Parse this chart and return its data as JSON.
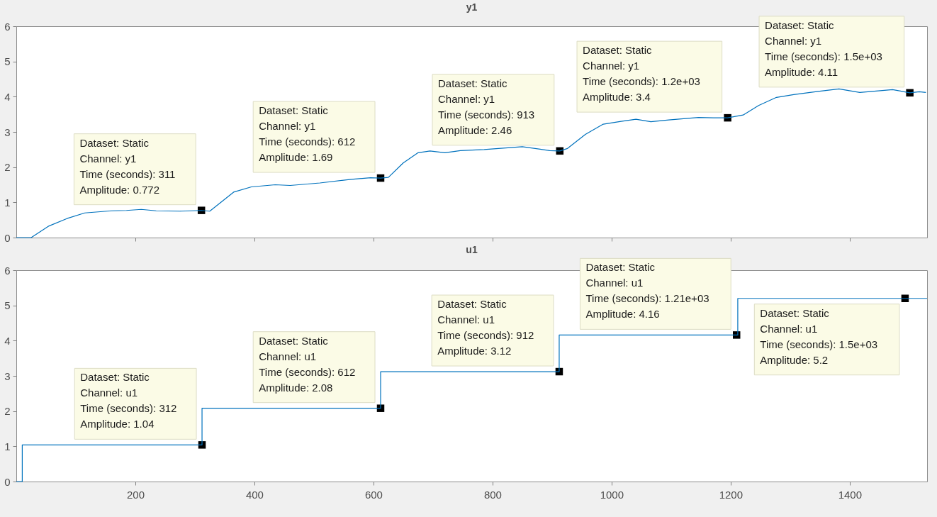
{
  "chart_data": [
    {
      "type": "line",
      "title": "y1",
      "color": "#0072bd",
      "x": [
        0,
        25,
        55,
        85,
        115,
        160,
        185,
        210,
        235,
        275,
        311,
        325,
        340,
        365,
        395,
        435,
        460,
        510,
        560,
        595,
        612,
        625,
        650,
        675,
        695,
        720,
        746,
        786,
        850,
        896,
        913,
        926,
        956,
        986,
        1016,
        1041,
        1066,
        1096,
        1146,
        1171,
        1195,
        1221,
        1247,
        1277,
        1306,
        1347,
        1382,
        1417,
        1472,
        1501,
        1517,
        1528
      ],
      "values": [
        0,
        0,
        0.33,
        0.54,
        0.7,
        0.76,
        0.77,
        0.8,
        0.76,
        0.75,
        0.77,
        0.75,
        0.95,
        1.29,
        1.44,
        1.5,
        1.48,
        1.55,
        1.65,
        1.7,
        1.69,
        1.71,
        2.12,
        2.41,
        2.46,
        2.41,
        2.47,
        2.5,
        2.58,
        2.47,
        2.46,
        2.53,
        2.93,
        3.22,
        3.3,
        3.36,
        3.29,
        3.34,
        3.41,
        3.4,
        3.4,
        3.48,
        3.75,
        3.98,
        4.06,
        4.15,
        4.22,
        4.12,
        4.2,
        4.11,
        4.14,
        4.12
      ],
      "xlim": [
        0,
        1530
      ],
      "xticks": [
        200,
        400,
        600,
        800,
        1000,
        1200,
        1400
      ],
      "ylim": [
        0,
        6
      ],
      "yticks": [
        0,
        1,
        2,
        3,
        4,
        5,
        6
      ],
      "tick_labels": "y",
      "annotations": [
        {
          "text": "Dataset: Static\nChannel: y1\nTime (seconds): 311\nAmplitude: 0.772",
          "x": 311,
          "y": 0.772
        },
        {
          "text": "Dataset: Static\nChannel: y1\nTime (seconds): 612\nAmplitude: 1.69",
          "x": 612,
          "y": 1.69
        },
        {
          "text": "Dataset: Static\nChannel: y1\nTime (seconds): 913\nAmplitude: 2.46",
          "x": 913,
          "y": 2.46
        },
        {
          "text": "Dataset: Static\nChannel: y1\nTime (seconds): 1.2e+03\nAmplitude: 3.4",
          "x": 1195,
          "y": 3.4
        },
        {
          "text": "Dataset: Static\nChannel: y1\nTime (seconds): 1.5e+03\nAmplitude: 4.11",
          "x": 1501,
          "y": 4.11
        }
      ]
    },
    {
      "type": "step",
      "title": "u1",
      "color": "#0072bd",
      "x": [
        0,
        10,
        312,
        612,
        912,
        1212,
        1530
      ],
      "values": [
        0,
        1.04,
        2.08,
        3.12,
        4.16,
        5.2,
        5.2
      ],
      "xlim": [
        0,
        1530
      ],
      "xticks": [
        200,
        400,
        600,
        800,
        1000,
        1200,
        1400
      ],
      "ylim": [
        0,
        6
      ],
      "yticks": [
        0,
        1,
        2,
        3,
        4,
        5,
        6
      ],
      "annotations": [
        {
          "text": "Dataset: Static\nChannel: u1\nTime (seconds): 312\nAmplitude: 1.04",
          "x": 312,
          "y": 1.04
        },
        {
          "text": "Dataset: Static\nChannel: u1\nTime (seconds): 612\nAmplitude: 2.08",
          "x": 612,
          "y": 2.08
        },
        {
          "text": "Dataset: Static\nChannel: u1\nTime (seconds): 912\nAmplitude: 3.12",
          "x": 912,
          "y": 3.12
        },
        {
          "text": "Dataset: Static\nChannel: u1\nTime (seconds): 1.21e+03\nAmplitude: 4.16",
          "x": 1210,
          "y": 4.16
        },
        {
          "text": "Dataset: Static\nChannel: u1\nTime (seconds): 1.5e+03\nAmplitude: 5.2",
          "x": 1493,
          "y": 5.2
        }
      ]
    }
  ]
}
